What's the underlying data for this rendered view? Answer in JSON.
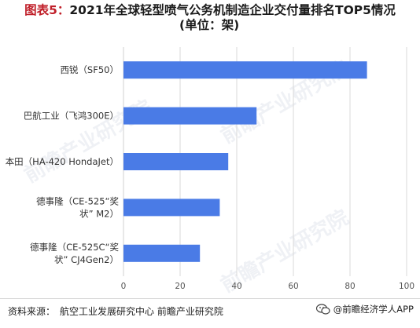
{
  "title": {
    "prefix": "图表5：",
    "line1_rest": "2021年全球轻型喷气公务机制造企业交付量排名TOP5情况",
    "line2": "(单位：架)"
  },
  "watermark": {
    "text": "前瞻产业研究院"
  },
  "footer": {
    "source_label": "资料来源：",
    "source_text": "航空工业发展研究中心 前瞻产业研究院",
    "brand_text": "@前瞻经济学人APP"
  },
  "colors": {
    "bar": "#4a7be6",
    "grid": "#d9d9d9",
    "title_accent": "#c0202a"
  },
  "chart_data": {
    "type": "bar",
    "orientation": "horizontal",
    "title": "图表5：2021年全球轻型喷气公务机制造企业交付量排名TOP5情况 (单位：架)",
    "categories": [
      [
        "西锐（SF50）"
      ],
      [
        "巴航工业（飞鸿300E）"
      ],
      [
        "本田（HA-420 HondaJet）"
      ],
      [
        "德事隆（CE-525“奖",
        "状” M2）"
      ],
      [
        "德事隆（CE-525C“奖",
        "状” CJ4Gen2）"
      ]
    ],
    "values": [
      86,
      47,
      37,
      34,
      27
    ],
    "xlim": [
      0,
      100
    ],
    "xticks": [
      0,
      20,
      40,
      60,
      80,
      100
    ],
    "grid": true,
    "legend": "none"
  }
}
